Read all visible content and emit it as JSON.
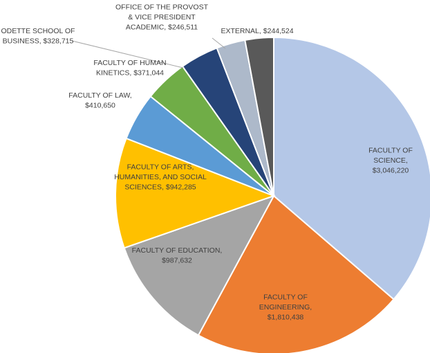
{
  "chart_data": {
    "type": "pie",
    "title": "",
    "legend": "none",
    "start_angle_deg": 0,
    "direction": "clockwise",
    "slices": [
      {
        "name": "FACULTY OF SCIENCE",
        "value": 3046220,
        "color": "#B4C7E7",
        "label_lines": [
          "FACULTY OF",
          "SCIENCE,",
          "$3,046,220"
        ],
        "label_color": "#404040"
      },
      {
        "name": "FACULTY OF ENGINEERING",
        "value": 1810438,
        "color": "#ED7D31",
        "label_lines": [
          "FACULTY OF",
          "ENGINEERING,",
          "$1,810,438"
        ],
        "label_color": "#404040"
      },
      {
        "name": "FACULTY OF EDUCATION",
        "value": 987632,
        "color": "#A5A5A5",
        "label_lines": [
          "FACULTY OF EDUCATION,",
          "$987,632"
        ],
        "label_color": "#404040"
      },
      {
        "name": "FACULTY OF ARTS, HUMANITIES, AND SOCIAL SCIENCES",
        "value": 942285,
        "color": "#FFC000",
        "label_lines": [
          "FACULTY OF ARTS,",
          "HUMANITIES, AND SOCIAL",
          "SCIENCES, $942,285"
        ],
        "label_color": "#404040"
      },
      {
        "name": "FACULTY OF LAW",
        "value": 410650,
        "color": "#5B9BD5",
        "label_lines": [
          "FACULTY OF LAW,",
          "$410,650"
        ],
        "label_color": "#404040"
      },
      {
        "name": "FACULTY OF HUMAN KINETICS",
        "value": 371044,
        "color": "#70AD47",
        "label_lines": [
          "FACULTY OF HUMAN",
          "KINETICS, $371,044"
        ],
        "label_color": "#404040"
      },
      {
        "name": "ODETTE SCHOOL OF BUSINESS",
        "value": 328715,
        "color": "#264478",
        "label_lines": [
          "ODETTE SCHOOL OF",
          "BUSINESS, $328,715"
        ],
        "label_color": "#404040"
      },
      {
        "name": "OFFICE OF THE PROVOST & VICE PRESIDENT ACADEMIC",
        "value": 246511,
        "color": "#ADB9CA",
        "label_lines": [
          "OFFICE OF THE PROVOST",
          "& VICE PRESIDENT",
          "ACADEMIC, $246,511"
        ],
        "label_color": "#404040"
      },
      {
        "name": "EXTERNAL",
        "value": 244524,
        "color": "#595959",
        "label_lines": [
          "EXTERNAL, $244,524"
        ],
        "label_color": "#404040"
      }
    ]
  }
}
